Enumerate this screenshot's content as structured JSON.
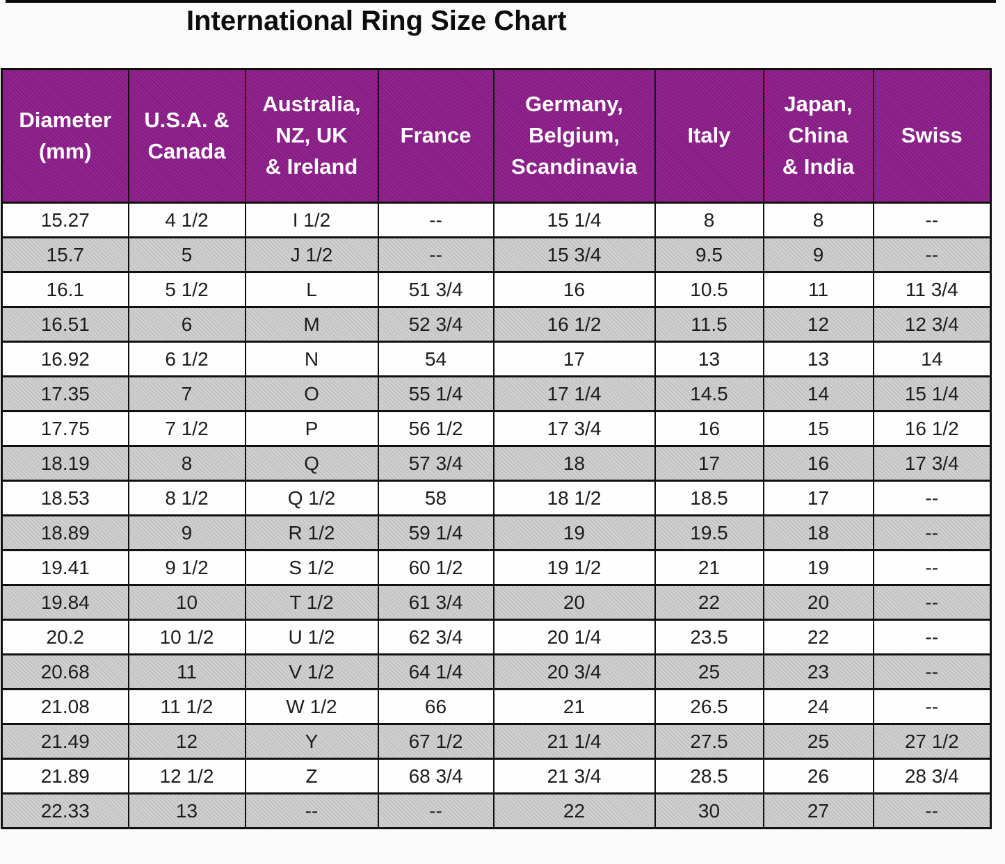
{
  "page": {
    "title": "International Ring Size Chart"
  },
  "colors": {
    "header_bg": "#8D1C8B",
    "header_text": "#FFFFFF",
    "alt_row_bg": "#C9C9C9",
    "border": "#101010"
  },
  "chart_data": {
    "type": "table",
    "title": "International Ring Size Chart",
    "missing_value_marker": "--",
    "row_striping": "alternating white and gray, first data row white",
    "columns": [
      "Diameter\n(mm)",
      "U.S.A. &\nCanada",
      "Australia,\nNZ, UK\n& Ireland",
      "France",
      "Germany,\nBelgium,\nScandinavia",
      "Italy",
      "Japan,\nChina\n& India",
      "Swiss"
    ],
    "rows": [
      [
        "15.27",
        "4 1/2",
        "I 1/2",
        "--",
        "15 1/4",
        "8",
        "8",
        "--"
      ],
      [
        "15.7",
        "5",
        "J 1/2",
        "--",
        "15 3/4",
        "9.5",
        "9",
        "--"
      ],
      [
        "16.1",
        "5 1/2",
        "L",
        "51 3/4",
        "16",
        "10.5",
        "11",
        "11 3/4"
      ],
      [
        "16.51",
        "6",
        "M",
        "52 3/4",
        "16 1/2",
        "11.5",
        "12",
        "12 3/4"
      ],
      [
        "16.92",
        "6 1/2",
        "N",
        "54",
        "17",
        "13",
        "13",
        "14"
      ],
      [
        "17.35",
        "7",
        "O",
        "55 1/4",
        "17 1/4",
        "14.5",
        "14",
        "15 1/4"
      ],
      [
        "17.75",
        "7 1/2",
        "P",
        "56 1/2",
        "17 3/4",
        "16",
        "15",
        "16 1/2"
      ],
      [
        "18.19",
        "8",
        "Q",
        "57 3/4",
        "18",
        "17",
        "16",
        "17 3/4"
      ],
      [
        "18.53",
        "8 1/2",
        "Q 1/2",
        "58",
        "18 1/2",
        "18.5",
        "17",
        "--"
      ],
      [
        "18.89",
        "9",
        "R 1/2",
        "59 1/4",
        "19",
        "19.5",
        "18",
        "--"
      ],
      [
        "19.41",
        "9 1/2",
        "S 1/2",
        "60 1/2",
        "19 1/2",
        "21",
        "19",
        "--"
      ],
      [
        "19.84",
        "10",
        "T 1/2",
        "61 3/4",
        "20",
        "22",
        "20",
        "--"
      ],
      [
        "20.2",
        "10 1/2",
        "U 1/2",
        "62 3/4",
        "20 1/4",
        "23.5",
        "22",
        "--"
      ],
      [
        "20.68",
        "11",
        "V 1/2",
        "64 1/4",
        "20 3/4",
        "25",
        "23",
        "--"
      ],
      [
        "21.08",
        "11 1/2",
        "W 1/2",
        "66",
        "21",
        "26.5",
        "24",
        "--"
      ],
      [
        "21.49",
        "12",
        "Y",
        "67 1/2",
        "21 1/4",
        "27.5",
        "25",
        "27 1/2"
      ],
      [
        "21.89",
        "12 1/2",
        "Z",
        "68 3/4",
        "21 3/4",
        "28.5",
        "26",
        "28 3/4"
      ],
      [
        "22.33",
        "13",
        "--",
        "--",
        "22",
        "30",
        "27",
        "--"
      ]
    ]
  }
}
